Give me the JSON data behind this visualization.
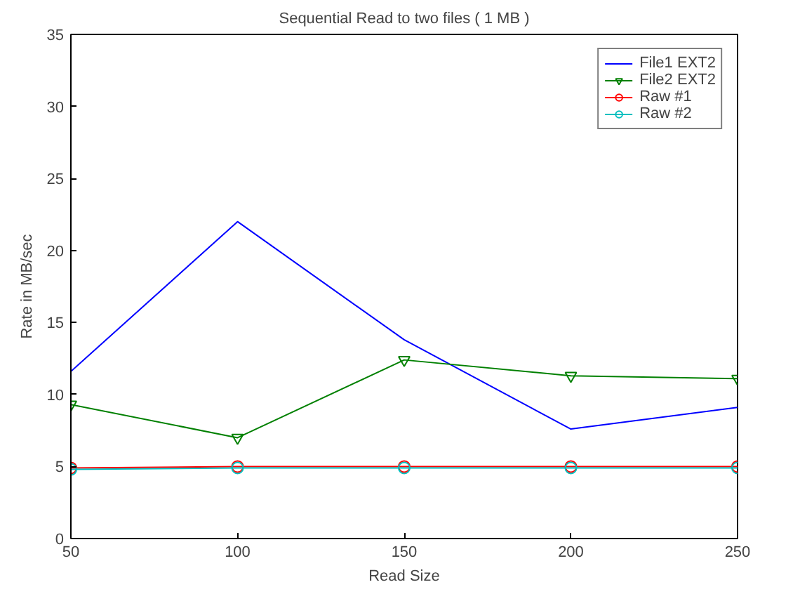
{
  "chart_data": {
    "type": "line",
    "title": "Sequential Read to two files ( 1 MB )",
    "xlabel": "Read Size",
    "ylabel": "Rate in MB/sec",
    "x": [
      50,
      100,
      150,
      200,
      250
    ],
    "series": [
      {
        "name": "File1 EXT2",
        "color": "#0000ff",
        "marker": "none",
        "values": [
          11.6,
          22.0,
          13.8,
          7.6,
          9.1
        ]
      },
      {
        "name": "File2 EXT2",
        "color": "#008000",
        "marker": "triangle",
        "values": [
          9.3,
          7.0,
          12.4,
          11.3,
          11.1
        ]
      },
      {
        "name": "Raw #1",
        "color": "#ff0000",
        "marker": "circle",
        "values": [
          4.9,
          5.0,
          5.0,
          5.0,
          5.0
        ]
      },
      {
        "name": "Raw #2",
        "color": "#00bfbf",
        "marker": "circle",
        "values": [
          4.8,
          4.9,
          4.9,
          4.9,
          4.9
        ]
      }
    ],
    "xlim": [
      50,
      250
    ],
    "ylim": [
      0,
      35
    ],
    "xticks": [
      50,
      100,
      150,
      200,
      250
    ],
    "yticks": [
      0,
      5,
      10,
      15,
      20,
      25,
      30,
      35
    ],
    "grid": false,
    "legend": "top right",
    "line_style": "solid"
  }
}
